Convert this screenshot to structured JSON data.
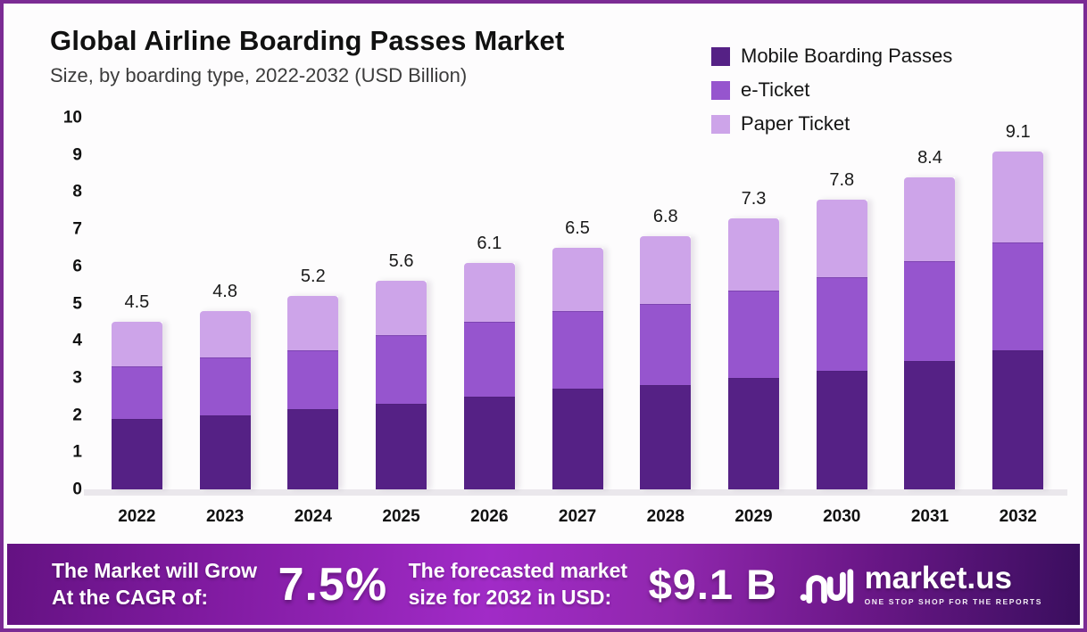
{
  "header": {
    "title": "Global Airline Boarding Passes Market",
    "subtitle": "Size, by boarding type, 2022-2032 (USD Billion)"
  },
  "colors": {
    "frame_border": "#7b2b94",
    "mobile": "#552185",
    "eticket": "#9655ce",
    "paper": "#cda4e9",
    "banner_bright": "#a12bc7",
    "banner_dark_left": "#641282",
    "banner_dark_right": "#3a0e5e"
  },
  "chart_data": {
    "type": "bar",
    "stacked": true,
    "title": "Global Airline Boarding Passes Market",
    "subtitle": "Size, by boarding type, 2022-2032 (USD Billion)",
    "categories": [
      "2022",
      "2023",
      "2024",
      "2025",
      "2026",
      "2027",
      "2028",
      "2029",
      "2030",
      "2031",
      "2032"
    ],
    "series": [
      {
        "name": "Mobile Boarding Passes",
        "color": "#552185",
        "values": [
          1.9,
          2.0,
          2.15,
          2.3,
          2.5,
          2.7,
          2.8,
          3.0,
          3.2,
          3.45,
          3.75
        ]
      },
      {
        "name": "e-Ticket",
        "color": "#9655ce",
        "values": [
          1.4,
          1.55,
          1.6,
          1.85,
          2.0,
          2.1,
          2.2,
          2.35,
          2.5,
          2.7,
          2.9
        ]
      },
      {
        "name": "Paper Ticket",
        "color": "#cda4e9",
        "values": [
          1.2,
          1.25,
          1.45,
          1.45,
          1.6,
          1.7,
          1.8,
          1.95,
          2.1,
          2.25,
          2.45
        ]
      }
    ],
    "totals": [
      4.5,
      4.8,
      5.2,
      5.6,
      6.1,
      6.5,
      6.8,
      7.3,
      7.8,
      8.4,
      9.1
    ],
    "xlabel": "",
    "ylabel": "",
    "ylim": [
      0,
      10
    ],
    "yticks": [
      0,
      1,
      2,
      3,
      4,
      5,
      6,
      7,
      8,
      9,
      10
    ],
    "grid": false,
    "legend_position": "top-right"
  },
  "footer": {
    "cagr_label_line1": "The Market will Grow",
    "cagr_label_line2": "At the CAGR of:",
    "cagr_value": "7.5%",
    "forecast_label_line1": "The forecasted market",
    "forecast_label_line2": "size for 2032 in USD:",
    "forecast_value": "$9.1 B",
    "logo_name": "market.us",
    "logo_tagline": "ONE STOP SHOP FOR THE REPORTS"
  }
}
